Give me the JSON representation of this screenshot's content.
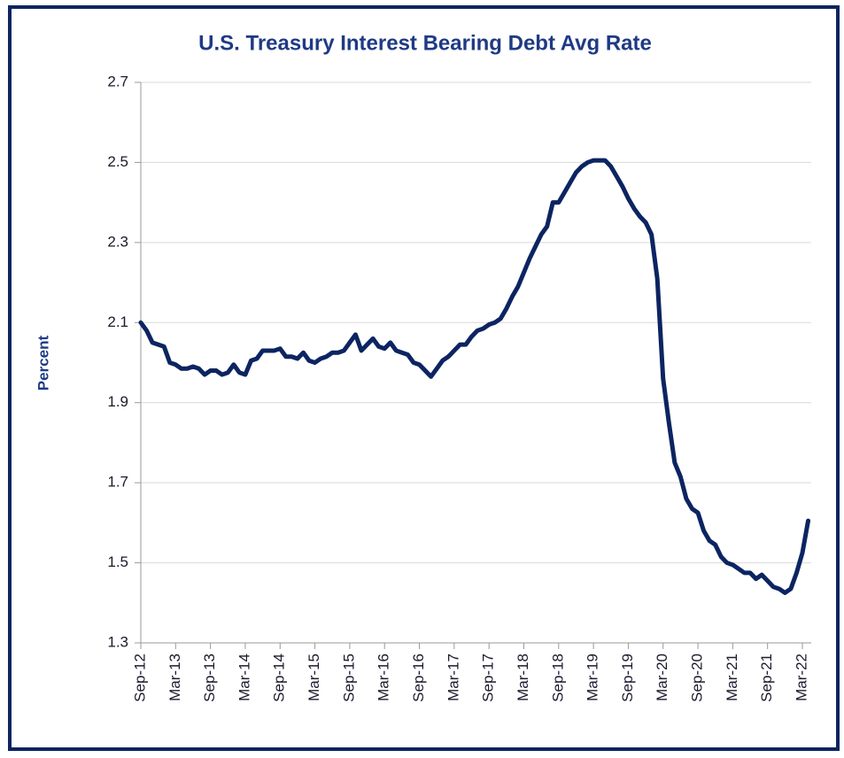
{
  "chart_data": {
    "type": "line",
    "title": "U.S. Treasury Interest Bearing Debt Avg Rate",
    "ylabel": "Percent",
    "categories": [
      "Sep-12",
      null,
      null,
      null,
      null,
      null,
      "Mar-13",
      null,
      null,
      null,
      null,
      null,
      "Sep-13",
      null,
      null,
      null,
      null,
      null,
      "Mar-14",
      null,
      null,
      null,
      null,
      null,
      "Sep-14",
      null,
      null,
      null,
      null,
      null,
      "Mar-15",
      null,
      null,
      null,
      null,
      null,
      "Sep-15",
      null,
      null,
      null,
      null,
      null,
      "Mar-16",
      null,
      null,
      null,
      null,
      null,
      "Sep-16",
      null,
      null,
      null,
      null,
      null,
      "Mar-17",
      null,
      null,
      null,
      null,
      null,
      "Sep-17",
      null,
      null,
      null,
      null,
      null,
      "Mar-18",
      null,
      null,
      null,
      null,
      null,
      "Sep-18",
      null,
      null,
      null,
      null,
      null,
      "Mar-19",
      null,
      null,
      null,
      null,
      null,
      "Sep-19",
      null,
      null,
      null,
      null,
      null,
      "Mar-20",
      null,
      null,
      null,
      null,
      null,
      "Sep-20",
      null,
      null,
      null,
      null,
      null,
      "Mar-21",
      null,
      null,
      null,
      null,
      null,
      "Sep-21",
      null,
      null,
      null,
      null,
      null,
      "Mar-22",
      null
    ],
    "values": [
      2.1,
      2.08,
      2.05,
      2.045,
      2.04,
      2.0,
      1.995,
      1.985,
      1.985,
      1.99,
      1.985,
      1.97,
      1.98,
      1.98,
      1.97,
      1.975,
      1.995,
      1.975,
      1.97,
      2.005,
      2.01,
      2.03,
      2.03,
      2.03,
      2.035,
      2.015,
      2.015,
      2.01,
      2.025,
      2.005,
      2.0,
      2.01,
      2.015,
      2.025,
      2.025,
      2.03,
      2.05,
      2.07,
      2.03,
      2.045,
      2.06,
      2.04,
      2.035,
      2.05,
      2.03,
      2.025,
      2.02,
      2.0,
      1.995,
      1.98,
      1.965,
      1.985,
      2.005,
      2.015,
      2.03,
      2.045,
      2.045,
      2.065,
      2.08,
      2.085,
      2.095,
      2.1,
      2.11,
      2.135,
      2.165,
      2.19,
      2.225,
      2.26,
      2.29,
      2.32,
      2.34,
      2.4,
      2.4,
      2.425,
      2.45,
      2.475,
      2.49,
      2.5,
      2.505,
      2.505,
      2.505,
      2.49,
      2.465,
      2.44,
      2.41,
      2.385,
      2.365,
      2.35,
      2.32,
      2.21,
      1.96,
      1.85,
      1.75,
      1.715,
      1.66,
      1.635,
      1.625,
      1.58,
      1.555,
      1.545,
      1.515,
      1.5,
      1.495,
      1.485,
      1.475,
      1.475,
      1.46,
      1.47,
      1.455,
      1.44,
      1.435,
      1.425,
      1.435,
      1.475,
      1.525,
      1.605
    ],
    "color": "#0c2461",
    "ylim": [
      1.3,
      2.7
    ],
    "yticks": [
      1.3,
      1.5,
      1.7,
      1.9,
      2.1,
      2.3,
      2.5,
      2.7
    ],
    "grid": true
  }
}
